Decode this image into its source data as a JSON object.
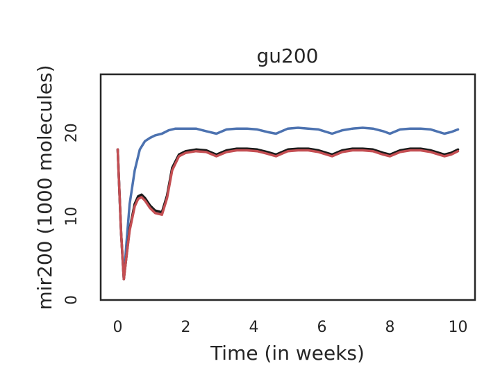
{
  "chart_data": {
    "type": "line",
    "title": "gu200",
    "xlabel": "Time (in weeks)",
    "ylabel": "mir200 (1000 molecules)",
    "xlim": [
      -0.5,
      10.5
    ],
    "ylim": [
      0,
      27
    ],
    "xticks": [
      0,
      2,
      4,
      6,
      8,
      10
    ],
    "yticks": [
      0,
      10,
      20
    ],
    "grid": false,
    "series": [
      {
        "color": "#4c72b0",
        "x": [
          0,
          0.1,
          0.18,
          0.25,
          0.35,
          0.5,
          0.65,
          0.8,
          0.95,
          1.1,
          1.3,
          1.5,
          1.7,
          2.0,
          2.3,
          2.6,
          2.9,
          3.2,
          3.5,
          3.8,
          4.1,
          4.4,
          4.65,
          5.0,
          5.3,
          5.6,
          5.9,
          6.3,
          6.6,
          6.9,
          7.2,
          7.5,
          7.8,
          8.0,
          8.3,
          8.6,
          8.9,
          9.2,
          9.6,
          9.8,
          10.0
        ],
        "values": [
          18.0,
          8.0,
          2.5,
          6.5,
          11.5,
          15.5,
          18.0,
          19.0,
          19.4,
          19.7,
          19.9,
          20.3,
          20.5,
          20.5,
          20.5,
          20.2,
          19.9,
          20.4,
          20.5,
          20.5,
          20.4,
          20.1,
          19.9,
          20.5,
          20.6,
          20.5,
          20.4,
          19.9,
          20.3,
          20.5,
          20.6,
          20.5,
          20.2,
          19.9,
          20.4,
          20.5,
          20.5,
          20.4,
          19.9,
          20.1,
          20.4
        ]
      },
      {
        "color": "#1a1a1a",
        "x": [
          0,
          0.1,
          0.18,
          0.25,
          0.35,
          0.5,
          0.6,
          0.7,
          0.8,
          0.95,
          1.1,
          1.3,
          1.45,
          1.6,
          1.8,
          2.0,
          2.3,
          2.6,
          2.9,
          3.2,
          3.5,
          3.8,
          4.1,
          4.4,
          4.65,
          5.0,
          5.3,
          5.6,
          5.9,
          6.3,
          6.6,
          6.9,
          7.2,
          7.5,
          7.8,
          8.0,
          8.3,
          8.6,
          8.9,
          9.2,
          9.6,
          9.8,
          10.0
        ],
        "values": [
          18.0,
          8.0,
          2.5,
          5.0,
          8.5,
          11.5,
          12.4,
          12.6,
          12.2,
          11.3,
          10.7,
          10.5,
          12.5,
          15.8,
          17.4,
          17.8,
          18.0,
          17.9,
          17.4,
          17.9,
          18.1,
          18.1,
          18.0,
          17.7,
          17.4,
          18.0,
          18.1,
          18.1,
          17.9,
          17.4,
          17.9,
          18.1,
          18.1,
          18.0,
          17.6,
          17.4,
          17.9,
          18.1,
          18.1,
          17.9,
          17.4,
          17.6,
          18.0
        ]
      },
      {
        "color": "#c44e52",
        "x": [
          0,
          0.1,
          0.18,
          0.25,
          0.35,
          0.5,
          0.6,
          0.7,
          0.8,
          0.95,
          1.1,
          1.3,
          1.45,
          1.6,
          1.8,
          2.0,
          2.3,
          2.6,
          2.9,
          3.2,
          3.5,
          3.8,
          4.1,
          4.4,
          4.65,
          5.0,
          5.3,
          5.6,
          5.9,
          6.3,
          6.6,
          6.9,
          7.2,
          7.5,
          7.8,
          8.0,
          8.3,
          8.6,
          8.9,
          9.2,
          9.6,
          9.8,
          10.0
        ],
        "values": [
          18.0,
          8.0,
          2.5,
          5.0,
          8.3,
          11.2,
          12.1,
          12.3,
          11.9,
          11.0,
          10.4,
          10.2,
          12.2,
          15.5,
          17.2,
          17.6,
          17.8,
          17.7,
          17.2,
          17.7,
          17.9,
          17.9,
          17.8,
          17.5,
          17.2,
          17.8,
          17.9,
          17.9,
          17.7,
          17.2,
          17.7,
          17.9,
          17.9,
          17.8,
          17.4,
          17.2,
          17.7,
          17.9,
          17.9,
          17.7,
          17.2,
          17.4,
          17.8
        ]
      }
    ]
  }
}
